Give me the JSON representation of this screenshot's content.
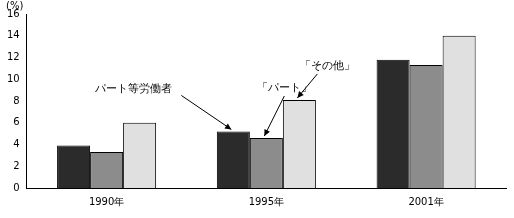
{
  "chart_data": {
    "type": "bar",
    "ylabel": "(%)",
    "categories": [
      "1990年",
      "1995年",
      "2001年"
    ],
    "series": [
      {
        "name": "パート等労働者",
        "color": "#2b2b2b",
        "values": [
          3.9,
          5.2,
          11.8
        ]
      },
      {
        "name": "「パート」",
        "color": "#8c8c8c",
        "values": [
          3.3,
          4.6,
          11.3
        ]
      },
      {
        "name": "「その他」",
        "color": "#e0e0e0",
        "values": [
          6.0,
          8.1,
          14.0
        ]
      }
    ],
    "ylim": [
      0,
      16
    ],
    "yticks": [
      0,
      2,
      4,
      6,
      8,
      10,
      12,
      14,
      16
    ],
    "grid": false,
    "annotations": [
      {
        "text": "パート等労働者",
        "series": "パート等労働者",
        "category": "1995年"
      },
      {
        "text": "「パート」",
        "series": "「パート」",
        "category": "1995年"
      },
      {
        "text": "「その他」",
        "series": "「その他」",
        "category": "1995年"
      }
    ]
  }
}
